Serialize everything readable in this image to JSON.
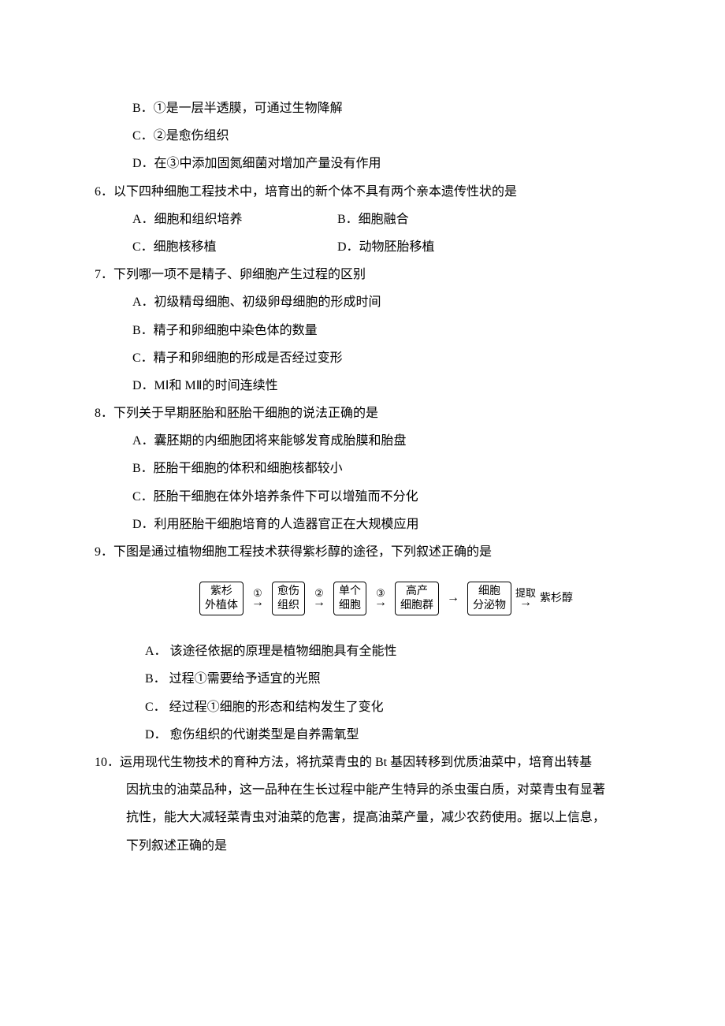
{
  "q5_partial": {
    "optB": "B．①是一层半透膜，可通过生物降解",
    "optC": "C．②是愈伤组织",
    "optD": "D．在③中添加固氮细菌对增加产量没有作用"
  },
  "q6": {
    "stem": "6．以下四种细胞工程技术中，培育出的新个体不具有两个亲本遗传性状的是",
    "optA": "A．细胞和组织培养",
    "optB": "B．细胞融合",
    "optC": "C．细胞核移植",
    "optD": "D．动物胚胎移植"
  },
  "q7": {
    "stem": "7．下列哪一项不是精子、卵细胞产生过程的区别",
    "optA": "A．初级精母细胞、初级卵母细胞的形成时间",
    "optB": "B．精子和卵细胞中染色体的数量",
    "optC": "C．精子和卵细胞的形成是否经过变形",
    "optD": "D．MⅠ和 MⅡ的时间连续性"
  },
  "q8": {
    "stem": "8．下列关于早期胚胎和胚胎干细胞的说法正确的是",
    "optA": "A．囊胚期的内细胞团将来能够发育成胎膜和胎盘",
    "optB": "B．胚胎干细胞的体积和细胞核都较小",
    "optC": "C．胚胎干细胞在体外培养条件下可以增殖而不分化",
    "optD": "D．利用胚胎干细胞培育的人造器官正在大规模应用"
  },
  "q9": {
    "stem": "9．下图是通过植物细胞工程技术获得紫杉醇的途径，下列叙述正确的是",
    "optA": "A．  该途径依据的原理是植物细胞具有全能性",
    "optB": "B．  过程①需要给予适宜的光照",
    "optC": "C．  经过程①细胞的形态和结构发生了变化",
    "optD": "D．  愈伤组织的代谢类型是自养需氧型"
  },
  "q10": {
    "line1": "10．运用现代生物技术的育种方法，将抗菜青虫的 Bt 基因转移到优质油菜中，培育出转基",
    "line2": "因抗虫的油菜品种，这一品种在生长过程中能产生特异的杀虫蛋白质，对菜青虫有显著",
    "line3": "抗性，能大大减轻菜青虫对油菜的危害，提高油菜产量，减少农药使用。据以上信息，",
    "line4": "下列叙述正确的是"
  },
  "flowchart": {
    "nodes": [
      {
        "line1": "紫杉",
        "line2": "外植体"
      },
      {
        "line1": "愈伤",
        "line2": "组织"
      },
      {
        "line1": "单个",
        "line2": "细胞"
      },
      {
        "line1": "高产",
        "line2": "细胞群"
      },
      {
        "line1": "细胞",
        "line2": "分泌物"
      }
    ],
    "arrow_labels": [
      "①",
      "②",
      "③",
      "",
      "提取"
    ],
    "arrow_glyph": "→",
    "final": "紫杉醇",
    "border_color": "#000000",
    "background": "#ffffff",
    "font_size": 14
  }
}
